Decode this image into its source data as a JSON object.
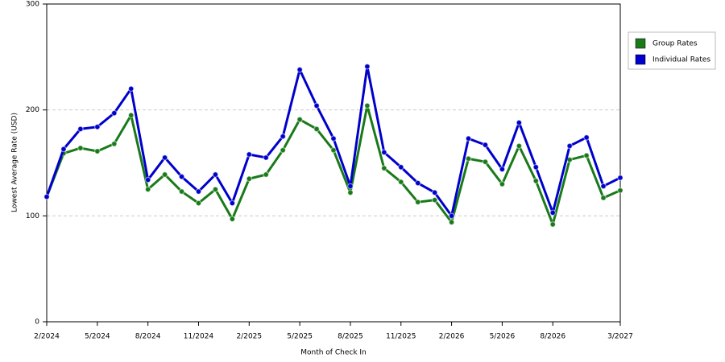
{
  "chart_data": {
    "type": "line",
    "x_label": "Month of Check In",
    "y_label": "Lowest Average Rate (USD)",
    "categories": [
      "2/2024",
      null,
      null,
      "5/2024",
      null,
      null,
      "8/2024",
      null,
      null,
      "11/2024",
      null,
      null,
      "2/2025",
      null,
      null,
      "5/2025",
      null,
      null,
      "8/2025",
      null,
      null,
      "11/2025",
      null,
      null,
      "2/2026",
      null,
      null,
      "5/2026",
      null,
      null,
      "8/2026",
      null,
      null,
      null,
      "3/2027"
    ],
    "series": [
      {
        "name": "Group Rates",
        "color": "#1a7a1a",
        "values": [
          118,
          159,
          164,
          161,
          168,
          195,
          125,
          139,
          123,
          112,
          125,
          97,
          135,
          139,
          162,
          191,
          182,
          162,
          122,
          204,
          145,
          132,
          113,
          115,
          94,
          154,
          151,
          130,
          166,
          133,
          92,
          153,
          157,
          117,
          124
        ]
      },
      {
        "name": "Individual Rates",
        "color": "#0000cc",
        "values": [
          118,
          163,
          182,
          184,
          197,
          220,
          134,
          155,
          137,
          123,
          139,
          112,
          158,
          155,
          175,
          238,
          204,
          173,
          128,
          241,
          160,
          146,
          131,
          122,
          100,
          173,
          167,
          144,
          188,
          146,
          103,
          166,
          174,
          128,
          136
        ]
      }
    ],
    "ylim": [
      0,
      300
    ],
    "yticks": [
      0,
      100,
      200,
      300
    ],
    "grid": true,
    "legend": "right"
  }
}
